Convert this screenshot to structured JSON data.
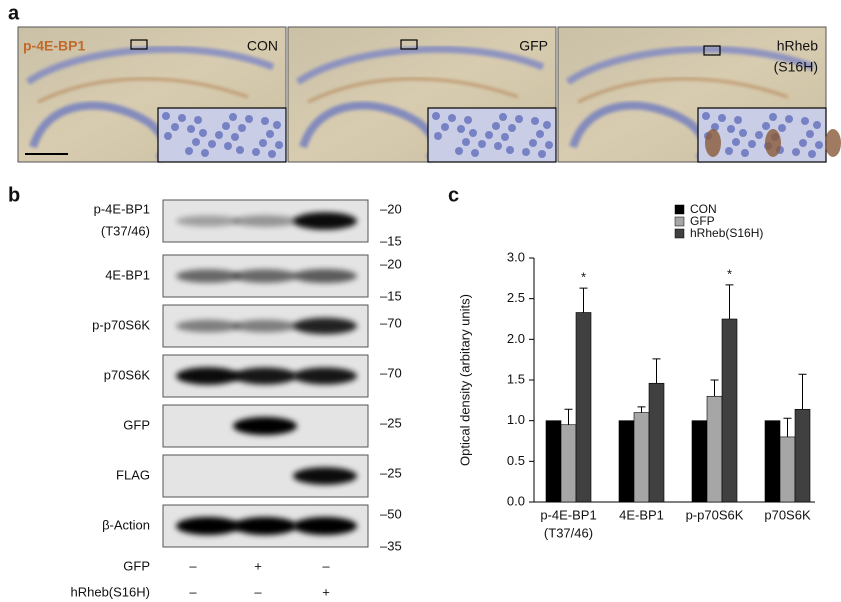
{
  "panel_a": {
    "label": "a",
    "stain": "p-4E-BP1",
    "images": [
      [
        "CON"
      ],
      [
        "GFP"
      ],
      [
        "hRheb",
        "(S16H)"
      ]
    ]
  },
  "panel_b": {
    "label": "b",
    "rows": [
      {
        "label": [
          "p-4E-BP1",
          "(T37/46)"
        ],
        "markers": [
          "–20",
          "–15"
        ]
      },
      {
        "label": [
          "4E-BP1"
        ],
        "markers": [
          "–20",
          "–15"
        ]
      },
      {
        "label": [
          "p-p70S6K"
        ],
        "markers": [
          "–70"
        ]
      },
      {
        "label": [
          "p70S6K"
        ],
        "markers": [
          "–70"
        ]
      },
      {
        "label": [
          "GFP"
        ],
        "markers": [
          "–25"
        ]
      },
      {
        "label": [
          "FLAG"
        ],
        "markers": [
          "–25"
        ]
      },
      {
        "label": [
          "β-Action"
        ],
        "markers": [
          "–50",
          "–35"
        ]
      }
    ],
    "conditions": [
      {
        "name": "GFP",
        "values": [
          "–",
          "+",
          "–"
        ]
      },
      {
        "name": "hRheb(S16H)",
        "values": [
          "–",
          "–",
          "+"
        ]
      }
    ]
  },
  "chart_data": {
    "type": "bar",
    "label": "c",
    "ylabel": "Optical density (arbitary units)",
    "categories": [
      [
        "p-4E-BP1",
        "(T37/46)"
      ],
      [
        "4E-BP1"
      ],
      [
        "p-p70S6K"
      ],
      [
        "p70S6K"
      ]
    ],
    "series": [
      {
        "name": "CON",
        "color": "#000000",
        "values": [
          1.0,
          1.0,
          1.0,
          1.0
        ]
      },
      {
        "name": "GFP",
        "color": "#a6a6a6",
        "values": [
          0.95,
          1.1,
          1.3,
          0.8
        ],
        "errors": [
          0.19,
          0.07,
          0.2,
          0.23
        ]
      },
      {
        "name": "hRheb(S16H)",
        "color": "#404040",
        "values": [
          2.33,
          1.46,
          2.25,
          1.14
        ],
        "errors": [
          0.3,
          0.3,
          0.42,
          0.43
        ]
      }
    ],
    "ylim": [
      0,
      3
    ],
    "yticks": [
      {
        "value": 0,
        "label": "0.0"
      },
      {
        "value": 0.5,
        "label": "0.5"
      },
      {
        "value": 1,
        "label": "1.0"
      },
      {
        "value": 1.5,
        "label": "1.5"
      },
      {
        "value": 2,
        "label": "2.0"
      },
      {
        "value": 2.5,
        "label": "2.5"
      },
      {
        "value": 3,
        "label": "3.0"
      }
    ],
    "annotations": [
      {
        "category": 0,
        "series": 2,
        "text": "*"
      },
      {
        "category": 2,
        "series": 2,
        "text": "*"
      }
    ]
  }
}
